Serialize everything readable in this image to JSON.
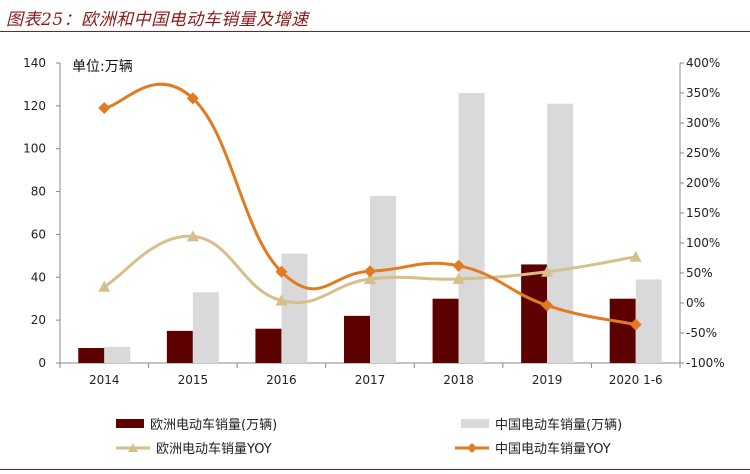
{
  "figure": {
    "title": "图表25：欧洲和中国电动车销量及增速"
  },
  "chart_data": {
    "type": "bar",
    "unit_label": "单位:万辆",
    "categories": [
      "2014",
      "2015",
      "2016",
      "2017",
      "2018",
      "2019",
      "2020 1-6"
    ],
    "series": [
      {
        "name": "欧洲电动车销量(万辆)",
        "type": "bar",
        "axis": "left",
        "color": "#5c0000",
        "values": [
          7,
          15,
          16,
          22,
          30,
          46,
          30
        ]
      },
      {
        "name": "中国电动车销量(万辆)",
        "type": "bar",
        "axis": "left",
        "color": "#d9d9d9",
        "values": [
          7.5,
          33,
          51,
          78,
          126,
          121,
          39
        ]
      },
      {
        "name": "欧洲电动车销量YOY",
        "type": "line",
        "axis": "right",
        "color": "#d6bf8a",
        "marker": "triangle",
        "values": [
          27,
          111,
          4,
          40,
          40,
          52,
          77
        ]
      },
      {
        "name": "中国电动车销量YOY",
        "type": "line",
        "axis": "right",
        "color": "#e07b22",
        "marker": "diamond",
        "values": [
          325,
          341,
          52,
          53,
          62,
          -4,
          -36
        ]
      }
    ],
    "y_left": {
      "min": 0,
      "max": 140,
      "ticks": [
        0,
        20,
        40,
        60,
        80,
        100,
        120,
        140
      ]
    },
    "y_right": {
      "min": -100,
      "max": 400,
      "ticks": [
        -100,
        -50,
        0,
        50,
        100,
        150,
        200,
        250,
        300,
        350,
        400
      ],
      "tick_labels": [
        "-100%",
        "-50%",
        "0%",
        "50%",
        "100%",
        "150%",
        "200%",
        "250%",
        "300%",
        "350%",
        "400%"
      ]
    },
    "grid": false,
    "legend_position": "bottom"
  }
}
